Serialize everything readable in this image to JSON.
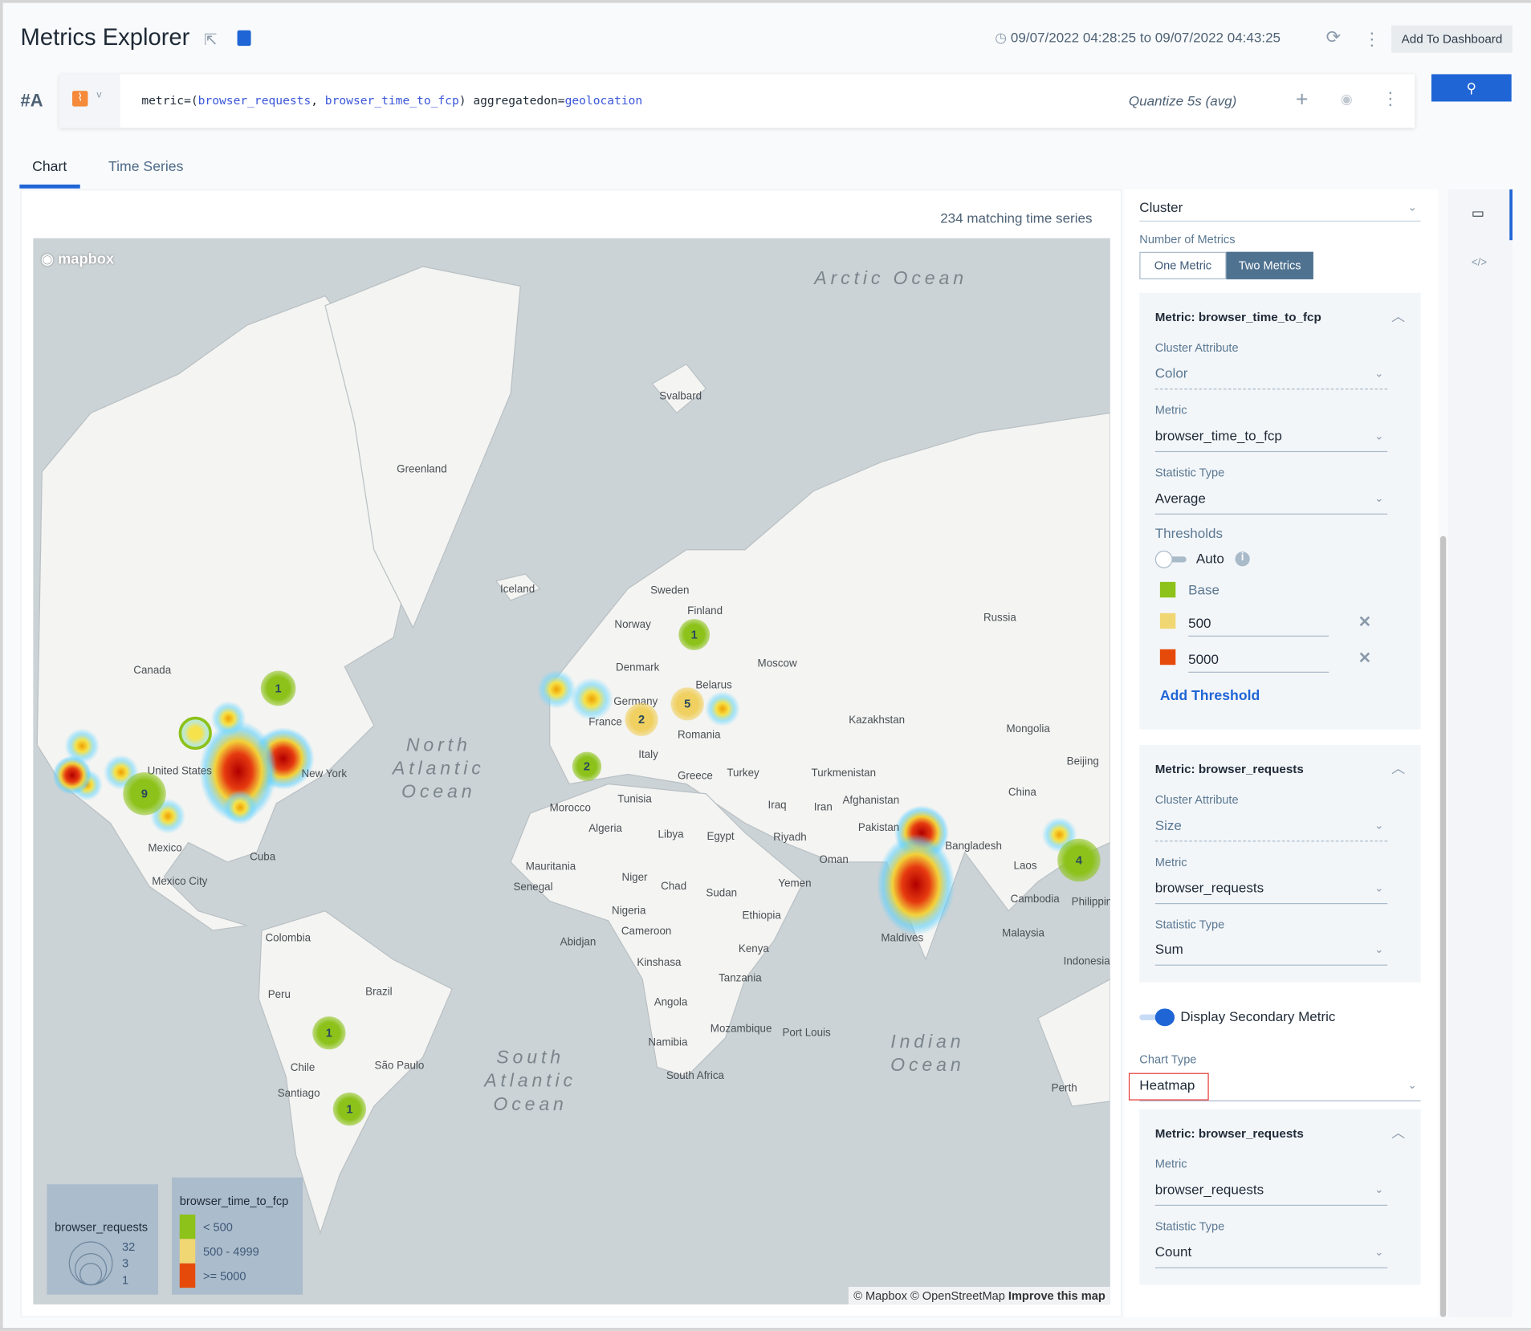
{
  "header": {
    "title": "Metrics Explorer",
    "share_icon": "share-icon",
    "save_icon": "save-icon",
    "time_range": "09/07/2022 04:28:25 to 09/07/2022 04:43:25",
    "add_to_dashboard": "Add To Dashboard"
  },
  "query": {
    "label": "#A",
    "prefix": "metric=(",
    "metric1": "browser_requests",
    "sep": ", ",
    "metric2": "browser_time_to_fcp",
    "suffix": ") aggregatedon=",
    "agg": "geolocation",
    "quantize": "Quantize 5s (avg)"
  },
  "tabs": [
    {
      "label": "Chart",
      "active": true
    },
    {
      "label": "Time Series",
      "active": false
    }
  ],
  "chart": {
    "matching": "234 matching time series",
    "attribution": "© Mapbox © OpenStreetMap",
    "improve": "Improve this map",
    "logo": "mapbox"
  },
  "map_labels": [
    "Greenland",
    "Svalbard",
    "Iceland",
    "Sweden",
    "Finland",
    "Norway",
    "Russia",
    "Canada",
    "Denmark",
    "Moscow",
    "Belarus",
    "Kazakhstan",
    "Mongolia",
    "Germany",
    "France",
    "Romania",
    "Italy",
    "United States",
    "New York",
    "Greece",
    "Turkey",
    "Turkmenistan",
    "Beijing",
    "China",
    "Morocco",
    "Tunisia",
    "Algeria",
    "Libya",
    "Egypt",
    "Iraq",
    "Iran",
    "Afghanistan",
    "Pakistan",
    "Bangladesh",
    "Riyadh",
    "Oman",
    "Laos",
    "Mexico",
    "Cuba",
    "Mexico City",
    "Mauritania",
    "Senegal",
    "Niger",
    "Chad",
    "Sudan",
    "Yemen",
    "Nigeria",
    "Ethiopia",
    "Cameroon",
    "Abidjan",
    "Maldives",
    "Cambodia",
    "Philippines",
    "Malaysia",
    "Kenya",
    "Kinshasa",
    "Tanzania",
    "Indonesia",
    "Colombia",
    "Peru",
    "Brazil",
    "Angola",
    "Mozambique",
    "Port Louis",
    "Namibia",
    "Chile",
    "São Paulo",
    "Santiago",
    "South Africa",
    "Perth"
  ],
  "oceans": [
    "Arctic Ocean",
    "North\nAtlantic\nOcean",
    "South\nAtlantic\nOcean",
    "Indian\nOcean"
  ],
  "clusters": [
    {
      "label": "1",
      "color": "#8cc21a"
    },
    {
      "label": "1",
      "color": "#8cc21a"
    },
    {
      "label": "",
      "color": "#8cc21a"
    },
    {
      "label": "9",
      "color": "#8cc21a"
    },
    {
      "label": "2",
      "color": "#f0d060"
    },
    {
      "label": "5",
      "color": "#f0d060"
    },
    {
      "label": "2",
      "color": "#8cc21a"
    },
    {
      "label": "4",
      "color": "#8cc21a"
    },
    {
      "label": "1",
      "color": "#8cc21a"
    },
    {
      "label": "1",
      "color": "#8cc21a"
    }
  ],
  "legend_size": {
    "title": "browser_requests",
    "values": [
      "32",
      "3",
      "1"
    ]
  },
  "legend_color": {
    "title": "browser_time_to_fcp",
    "items": [
      {
        "label": "< 500",
        "color": "#8cc21a"
      },
      {
        "label": "500 - 4999",
        "color": "#f1d774"
      },
      {
        "label": ">= 5000",
        "color": "#e64a0a"
      }
    ]
  },
  "side": {
    "cluster": "Cluster",
    "num_metrics_label": "Number of Metrics",
    "one_metric": "One Metric",
    "two_metrics": "Two Metrics",
    "selected": "Two Metrics",
    "card1": {
      "title": "Metric: browser_time_to_fcp",
      "attr_label": "Cluster Attribute",
      "attr": "Color",
      "metric_label": "Metric",
      "metric": "browser_time_to_fcp",
      "stat_label": "Statistic Type",
      "stat": "Average",
      "thresholds_label": "Thresholds",
      "auto": "Auto",
      "auto_on": false,
      "thresholds": [
        {
          "label": "Base",
          "color": "#8cc21a"
        },
        {
          "label": "500",
          "color": "#f1d774"
        },
        {
          "label": "5000",
          "color": "#e64a0a"
        }
      ],
      "add_threshold": "Add Threshold"
    },
    "card2": {
      "title": "Metric: browser_requests",
      "attr_label": "Cluster Attribute",
      "attr": "Size",
      "metric_label": "Metric",
      "metric": "browser_requests",
      "stat_label": "Statistic Type",
      "stat": "Sum"
    },
    "secondary": "Display Secondary Metric",
    "secondary_on": true,
    "chart_type_label": "Chart Type",
    "chart_type": "Heatmap",
    "card3": {
      "title": "Metric: browser_requests",
      "metric_label": "Metric",
      "metric": "browser_requests",
      "stat_label": "Statistic Type",
      "stat": "Count"
    }
  },
  "rail": {
    "icons": [
      "monitor-icon",
      "code-icon"
    ]
  }
}
